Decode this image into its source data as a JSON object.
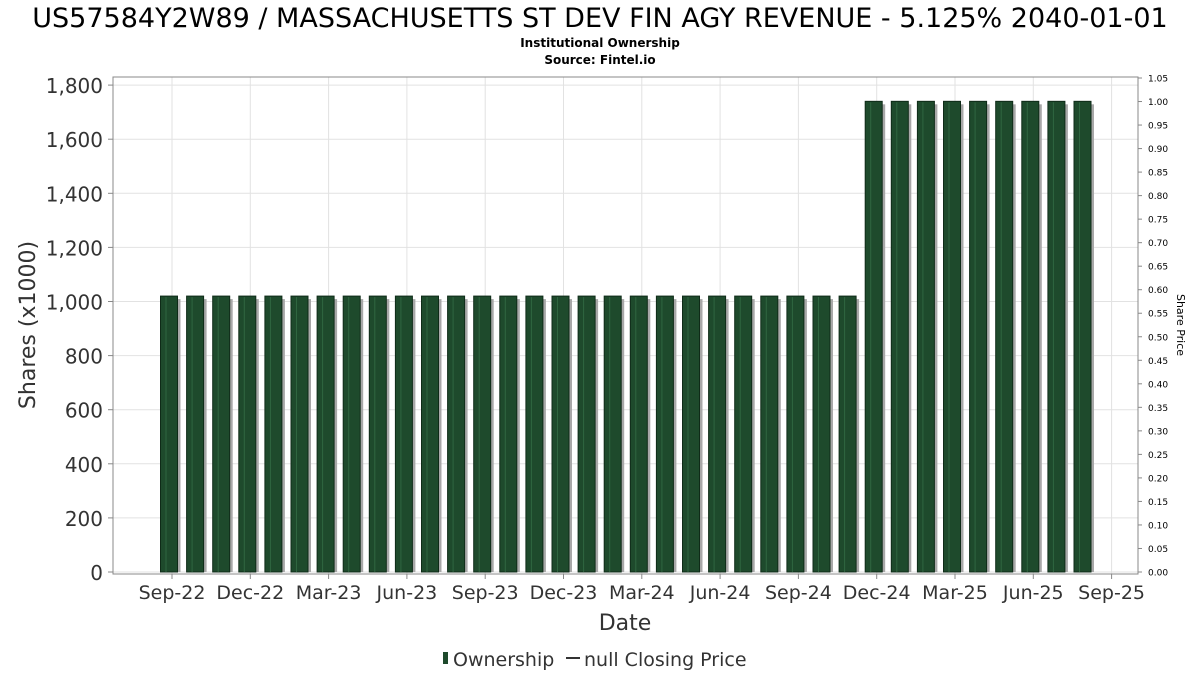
{
  "chart_data": {
    "type": "bar",
    "title": "US57584Y2W89 / MASSACHUSETTS ST DEV FIN AGY REVENUE - 5.125% 2040-01-01",
    "subtitle": "Institutional Ownership",
    "source": "Source: Fintel.io",
    "xlabel": "Date",
    "ylabel": "Shares (x1000)",
    "y2label": "Share Price",
    "ylim": [
      0,
      1830
    ],
    "y_ticks": [
      0,
      200,
      400,
      600,
      800,
      1000,
      1200,
      1400,
      1600,
      1800
    ],
    "y_tick_labels": [
      "0",
      "200",
      "400",
      "600",
      "800",
      "1,000",
      "1,200",
      "1,400",
      "1,600",
      "1,800"
    ],
    "y2lim": [
      0,
      1.05
    ],
    "y2_tick_labels": [
      "0.00",
      "0.05",
      "0.10",
      "0.15",
      "0.20",
      "0.25",
      "0.30",
      "0.35",
      "0.40",
      "0.45",
      "0.50",
      "0.55",
      "0.60",
      "0.65",
      "0.70",
      "0.75",
      "0.80",
      "0.85",
      "0.90",
      "0.95",
      "1.00",
      "1.05"
    ],
    "x_tick_labels": [
      "Sep-22",
      "Dec-22",
      "Mar-23",
      "Jun-23",
      "Sep-23",
      "Dec-23",
      "Mar-24",
      "Jun-24",
      "Sep-24",
      "Dec-24",
      "Mar-25",
      "Jun-25",
      "Sep-25"
    ],
    "series": [
      {
        "name": "Ownership",
        "color": "#1e4a2c",
        "values": [
          1020,
          1020,
          1020,
          1020,
          1020,
          1020,
          1020,
          1020,
          1020,
          1020,
          1020,
          1020,
          1020,
          1020,
          1020,
          1020,
          1020,
          1020,
          1020,
          1020,
          1020,
          1020,
          1020,
          1020,
          1020,
          1020,
          1020,
          1740,
          1740,
          1740,
          1740,
          1740,
          1740,
          1740,
          1740,
          1740
        ]
      }
    ],
    "legend": [
      {
        "label": "Ownership",
        "marker": "bar"
      },
      {
        "label": "null Closing Price",
        "marker": "line"
      }
    ],
    "legend_position": "bottom-center",
    "grid": true
  }
}
